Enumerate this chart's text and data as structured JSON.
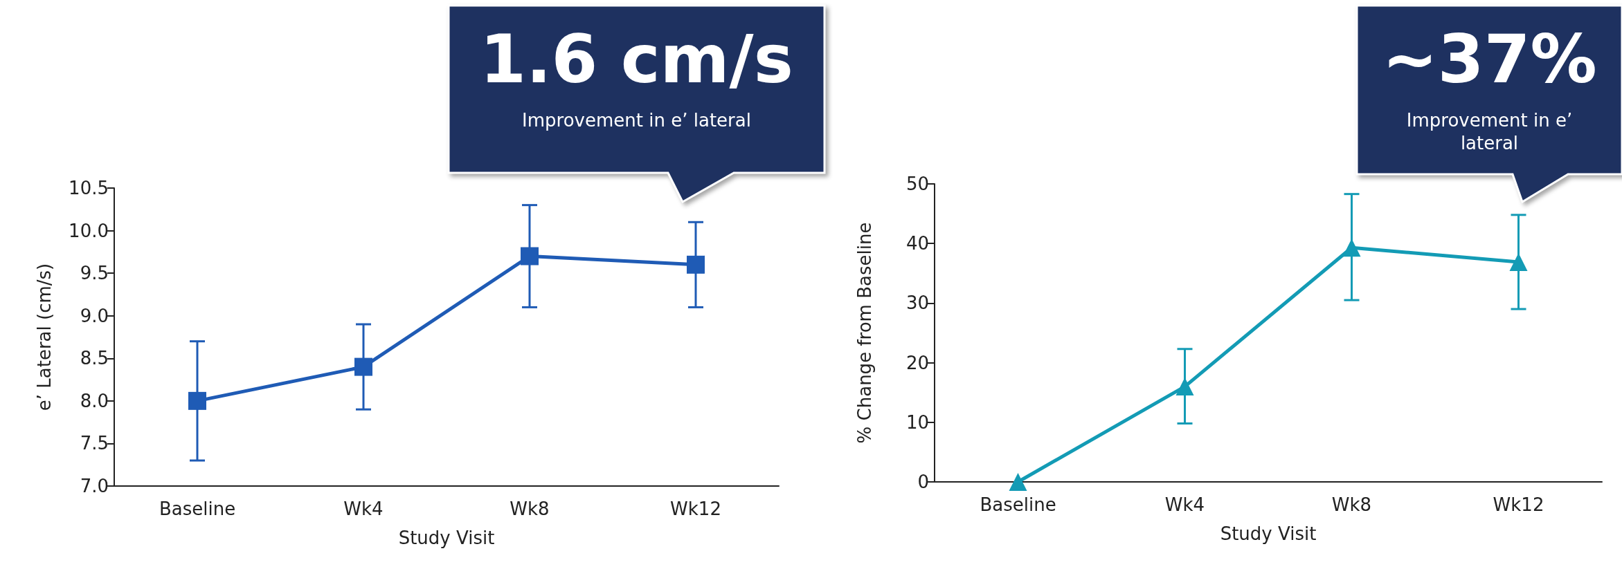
{
  "chart_data": [
    {
      "type": "line",
      "xlabel": "Study Visit",
      "ylabel": "e’ Lateral (cm/s)",
      "categories": [
        "Baseline",
        "Wk4",
        "Wk8",
        "Wk12"
      ],
      "series": [
        {
          "color": "#1f5bb5",
          "values": [
            8.0,
            8.4,
            9.7,
            9.6
          ],
          "errors": [
            [
              7.3,
              8.7
            ],
            [
              7.9,
              8.9
            ],
            [
              9.1,
              10.3
            ],
            [
              9.1,
              10.1
            ]
          ]
        }
      ],
      "ylim": [
        7.0,
        10.5
      ],
      "yticks": [
        {
          "value": 7,
          "label": "7.0"
        },
        7.5,
        {
          "value": 8,
          "label": "8.0"
        },
        8.5,
        {
          "value": 9,
          "label": "9.0"
        },
        9.5,
        {
          "value": 10,
          "label": "10.0"
        },
        10.5
      ],
      "marker": "square",
      "grid": false,
      "annotations": [
        "1.6 cm/s",
        "Improvement in e’ lateral"
      ]
    },
    {
      "type": "line",
      "xlabel": "Study Visit",
      "ylabel": "% Change from Baseline",
      "categories": [
        "Baseline",
        "Wk4",
        "Wk8",
        "Wk12"
      ],
      "series": [
        {
          "color": "#139bb5",
          "values": [
            0,
            16,
            39.3,
            36.9
          ],
          "errors": [
            null,
            [
              9.8,
              22.3
            ],
            [
              30.5,
              48.3
            ],
            [
              29,
              44.8
            ]
          ]
        }
      ],
      "ylim": [
        0,
        50
      ],
      "yticks": [
        0,
        10,
        20,
        30,
        40,
        50
      ],
      "marker": "triangle",
      "grid": false,
      "annotations": [
        "~37%",
        "Improvement in e’ lateral"
      ]
    }
  ]
}
